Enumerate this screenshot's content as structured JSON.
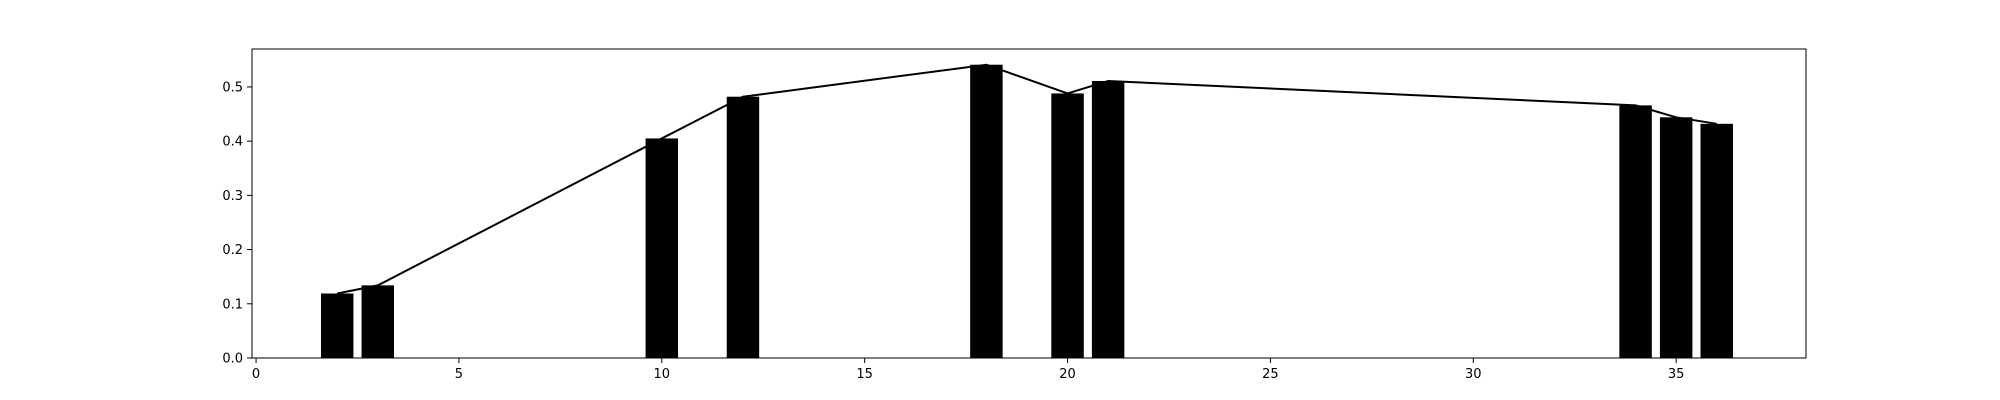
{
  "chart_data": {
    "type": "bar",
    "x": [
      2,
      3,
      10,
      12,
      18,
      20,
      21,
      34,
      35,
      36
    ],
    "values": [
      0.119,
      0.134,
      0.405,
      0.482,
      0.541,
      0.488,
      0.511,
      0.466,
      0.444,
      0.432
    ],
    "line_overlay": true,
    "title": "",
    "xlabel": "",
    "ylabel": "",
    "xlim": [
      -0.1,
      38.2
    ],
    "ylim": [
      0.0,
      0.57
    ],
    "xticks": [
      0,
      5,
      10,
      15,
      20,
      25,
      30,
      35
    ],
    "yticks": [
      0.0,
      0.1,
      0.2,
      0.3,
      0.4,
      0.5
    ],
    "xtick_labels": [
      "0",
      "5",
      "10",
      "15",
      "20",
      "25",
      "30",
      "35"
    ],
    "ytick_labels": [
      "0.0",
      "0.1",
      "0.2",
      "0.3",
      "0.4",
      "0.5"
    ],
    "grid": false,
    "legend": "none",
    "colors": {
      "bar": "#000000",
      "line": "#000000",
      "axis": "#000000",
      "background": "#ffffff"
    }
  }
}
